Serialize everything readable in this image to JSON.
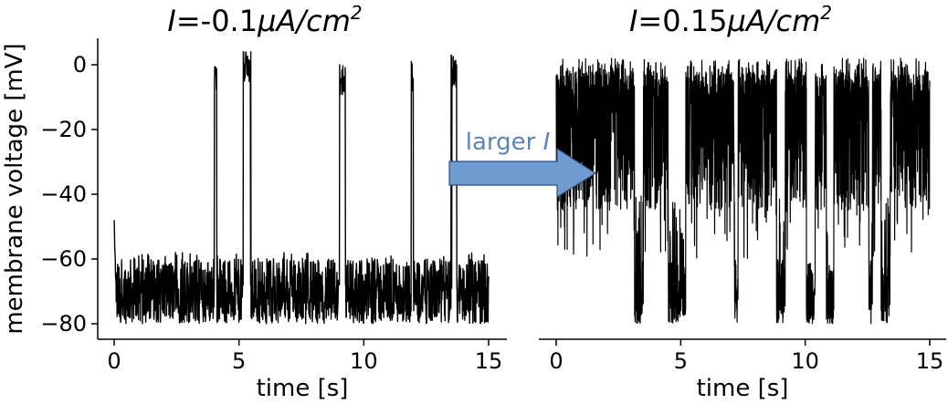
{
  "chart_data": [
    {
      "type": "line",
      "title": "I=-0.1μA/cm²",
      "title_parts": {
        "italic_pre": "I",
        "eq": "=-0.1",
        "italic_unit": "μA/cm",
        "sup": "2"
      },
      "xlabel": "time [s]",
      "ylabel": "membrane voltage [mV]",
      "xlim": [
        0,
        15
      ],
      "ylim": [
        -85,
        8
      ],
      "xticks": [
        0,
        5,
        10,
        15
      ],
      "yticks": [
        0,
        -20,
        -40,
        -60,
        -80
      ],
      "line_color": "#000000",
      "series": [
        {
          "baseline_mean": -70,
          "noise_range": [
            -80,
            -60
          ],
          "initial_spike": -48,
          "spikes": [
            {
              "t": 4.0,
              "width": 0.12,
              "peak": 0,
              "trough": -79
            },
            {
              "t": 5.15,
              "width": 0.35,
              "peak": 4,
              "trough": -78
            },
            {
              "t": 9.0,
              "width": 0.3,
              "peak": 0,
              "trough": -78
            },
            {
              "t": 11.9,
              "width": 0.1,
              "peak": 1,
              "trough": -76
            },
            {
              "t": 13.5,
              "width": 0.25,
              "peak": 3,
              "trough": -79
            }
          ]
        }
      ]
    },
    {
      "type": "line",
      "title": "I=0.15μA/cm²",
      "title_parts": {
        "italic_pre": "I",
        "eq": "=0.15",
        "italic_unit": "μA/cm",
        "sup": "2"
      },
      "xlabel": "time [s]",
      "ylabel": "",
      "xlim": [
        0,
        15
      ],
      "ylim": [
        -85,
        8
      ],
      "xticks": [
        0,
        5,
        10,
        15
      ],
      "line_color": "#000000",
      "series": [
        {
          "up_state_range": [
            -45,
            2
          ],
          "down_state_range": [
            -80,
            -60
          ],
          "down_periods": [
            {
              "t": 3.15,
              "dur": 0.35
            },
            {
              "t": 4.5,
              "dur": 0.7
            },
            {
              "t": 7.15,
              "dur": 0.15
            },
            {
              "t": 8.85,
              "dur": 0.35
            },
            {
              "t": 10.05,
              "dur": 0.35
            },
            {
              "t": 10.85,
              "dur": 0.3
            },
            {
              "t": 12.55,
              "dur": 0.15
            },
            {
              "t": 13.05,
              "dur": 0.35
            }
          ]
        }
      ]
    }
  ],
  "annotation": {
    "label_text": "larger ",
    "label_italic": "I",
    "arrow_color": "#6f9bd1",
    "arrow_edge_color": "#2f4f7f"
  }
}
